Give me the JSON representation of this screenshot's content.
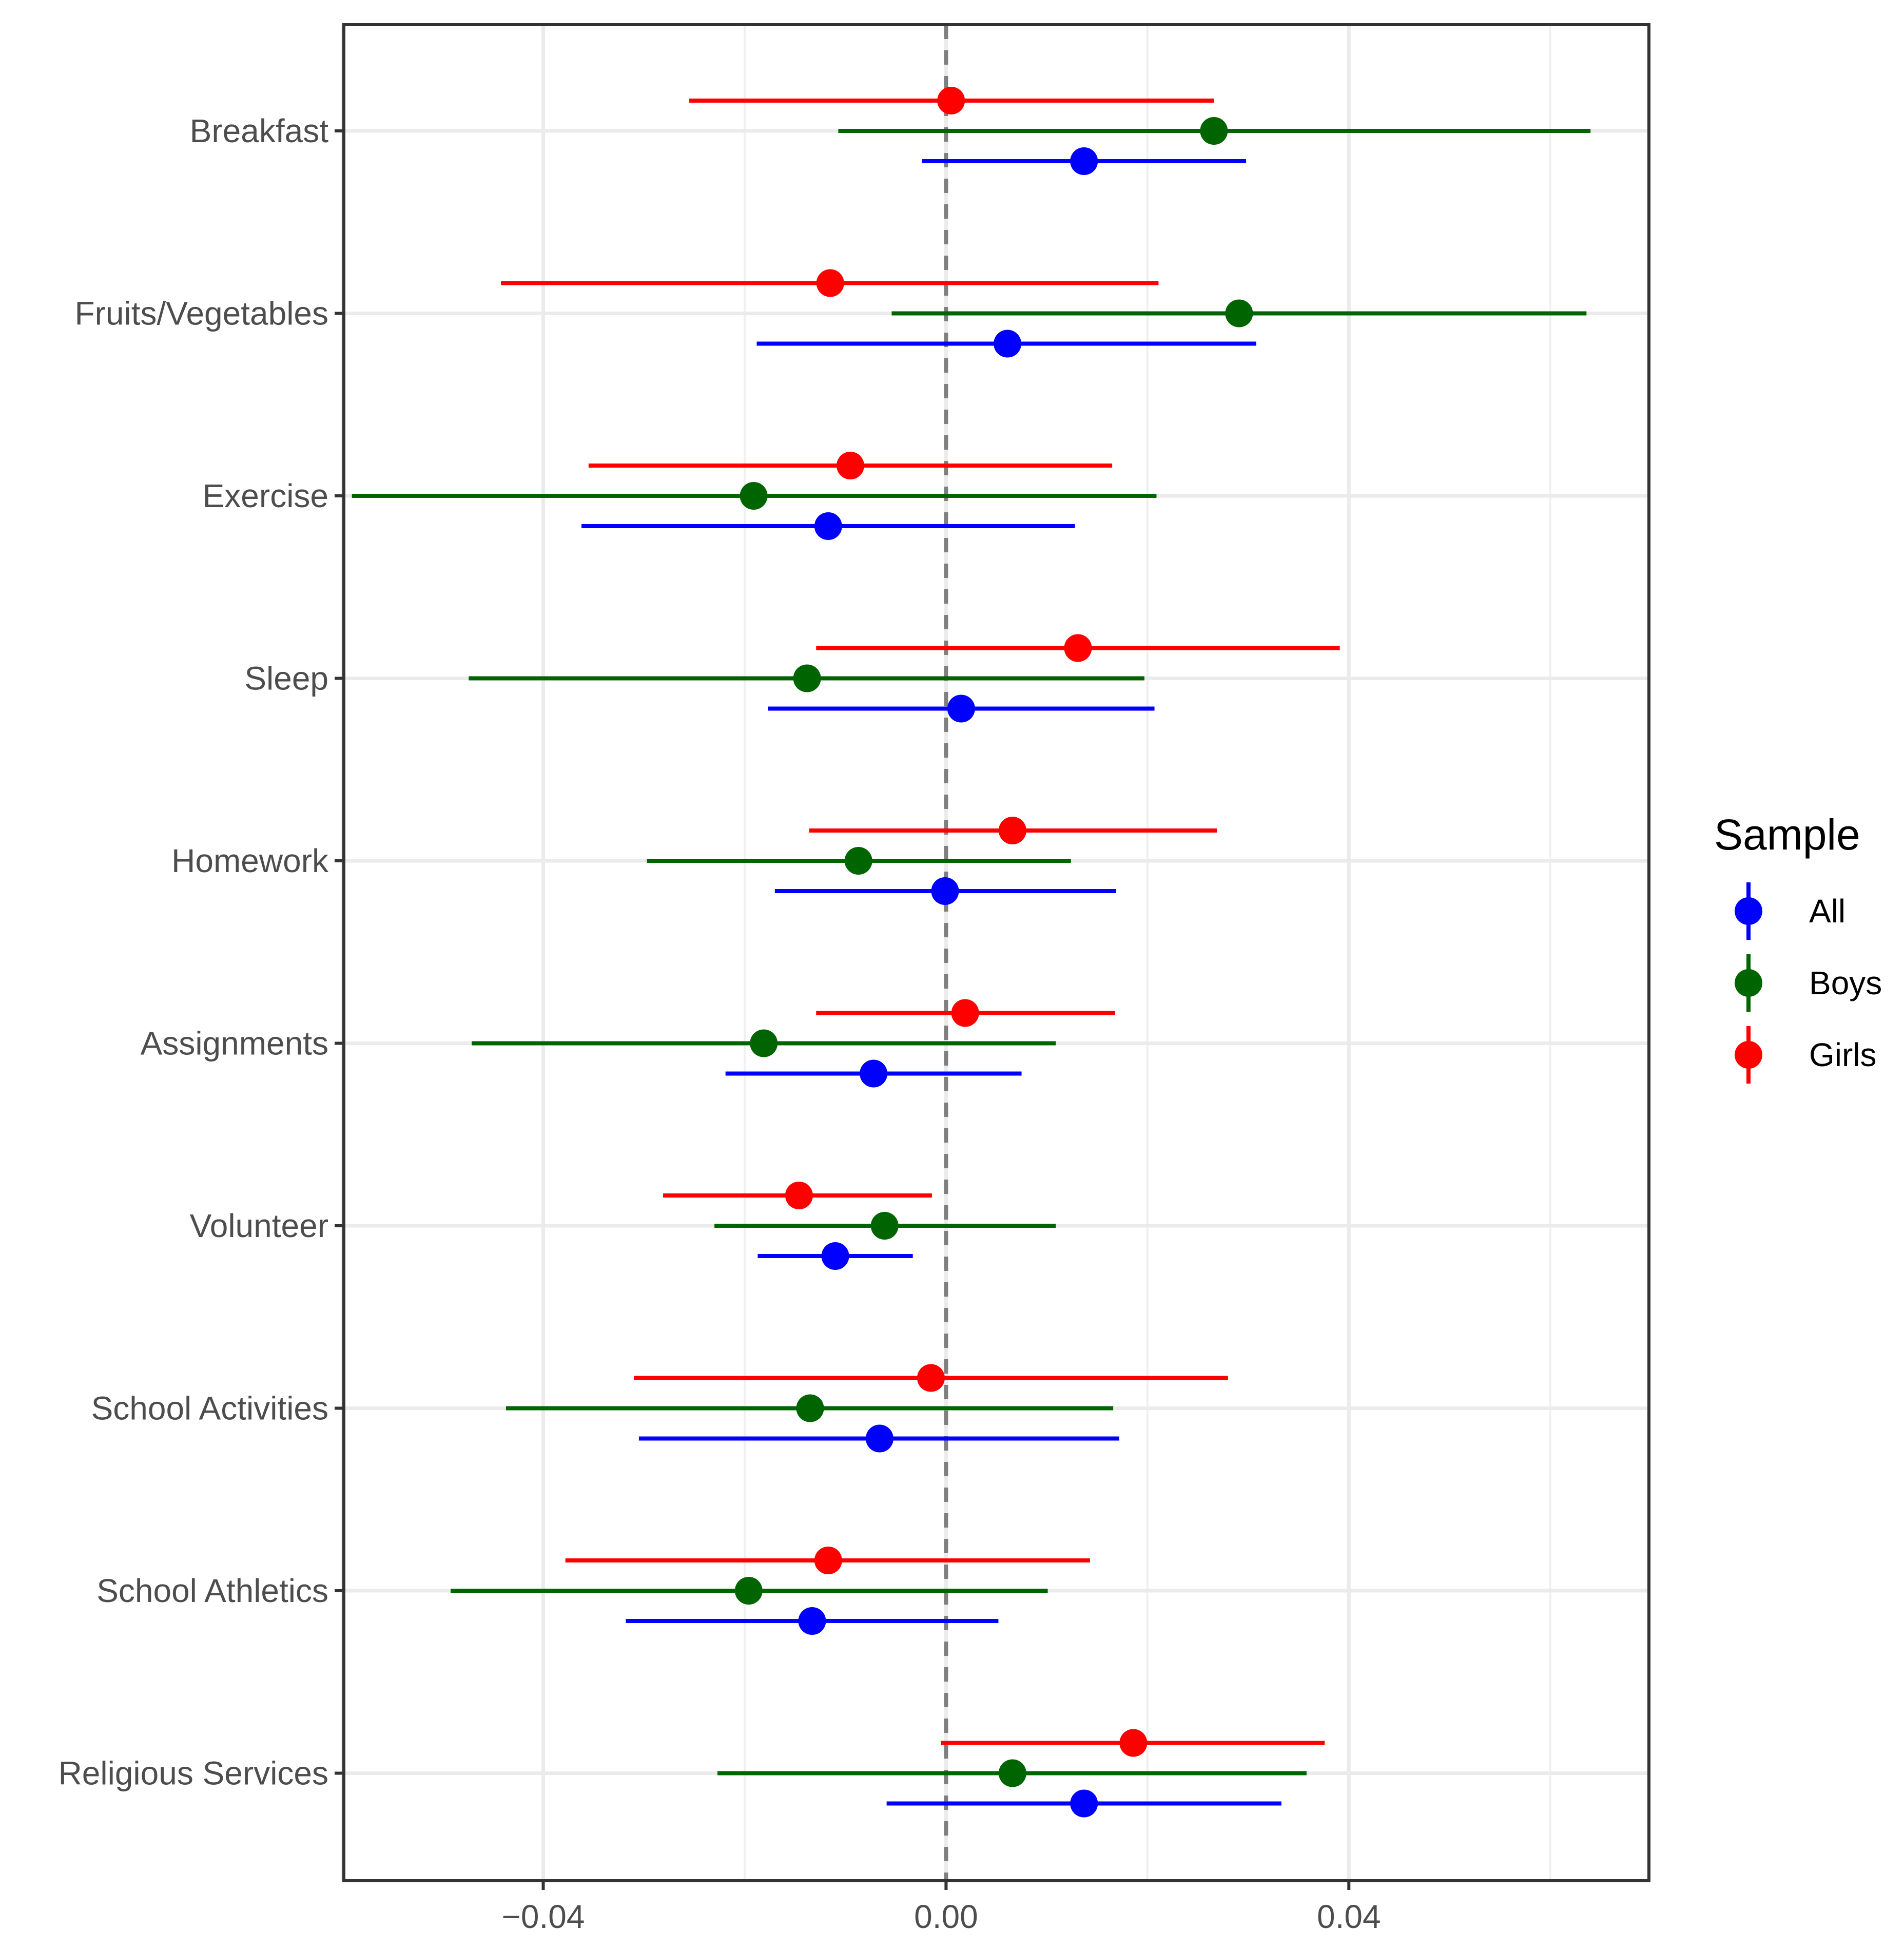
{
  "chart_data": {
    "type": "dot-and-whisker",
    "title": "",
    "xlabel": "",
    "ylabel": "",
    "xlim": [
      -0.0598,
      0.0698
    ],
    "x_ticks": [
      -0.04,
      0.0,
      0.04
    ],
    "x_tick_labels": [
      "−0.04",
      "0.00",
      "0.04"
    ],
    "x_minor_gridlines": [
      -0.06,
      -0.02,
      0.02,
      0.06
    ],
    "reference_line": 0.0,
    "grid": true,
    "legend": {
      "title": "Sample",
      "placement": "right",
      "entries": [
        {
          "label": "All",
          "color": "#0000ff"
        },
        {
          "label": "Boys",
          "color": "#006400"
        },
        {
          "label": "Girls",
          "color": "#ff0000"
        }
      ]
    },
    "categories": [
      "Breakfast",
      "Fruits/Vegetables",
      "Exercise",
      "Sleep",
      "Homework",
      "Assignments",
      "Volunteer",
      "School Activities",
      "School Athletics",
      "Religious Services"
    ],
    "series": [
      {
        "name": "Girls",
        "color": "#ff0000",
        "estimates": [
          0.0005,
          -0.0115,
          -0.0095,
          0.0131,
          0.0066,
          0.0019,
          -0.0146,
          -0.0015,
          -0.0117,
          0.0186
        ],
        "ci_low": [
          -0.0255,
          -0.0442,
          -0.0355,
          -0.0129,
          -0.0136,
          -0.0129,
          -0.0281,
          -0.031,
          -0.0378,
          -0.0005
        ],
        "ci_high": [
          0.0266,
          0.0211,
          0.0165,
          0.0391,
          0.0269,
          0.0168,
          -0.0014,
          0.028,
          0.0143,
          0.0376
        ]
      },
      {
        "name": "Boys",
        "color": "#006400",
        "estimates": [
          0.0266,
          0.0291,
          -0.0191,
          -0.0138,
          -0.0087,
          -0.0181,
          -0.0061,
          -0.0135,
          -0.0196,
          0.0066
        ],
        "ci_low": [
          -0.0107,
          -0.0054,
          -0.059,
          -0.0474,
          -0.0297,
          -0.0471,
          -0.023,
          -0.0437,
          -0.0492,
          -0.0227
        ],
        "ci_high": [
          0.064,
          0.0636,
          0.0209,
          0.0197,
          0.0124,
          0.0109,
          0.0109,
          0.0166,
          0.0101,
          0.0358
        ]
      },
      {
        "name": "All",
        "color": "#0000ff",
        "estimates": [
          0.0137,
          0.0061,
          -0.0117,
          0.0015,
          -0.0001,
          -0.0072,
          -0.011,
          -0.0066,
          -0.0133,
          0.0137
        ],
        "ci_low": [
          -0.0024,
          -0.0188,
          -0.0362,
          -0.0177,
          -0.017,
          -0.0219,
          -0.0187,
          -0.0305,
          -0.0318,
          -0.0059
        ],
        "ci_high": [
          0.0298,
          0.0308,
          0.0128,
          0.0207,
          0.0169,
          0.0075,
          -0.0033,
          0.0172,
          0.0052,
          0.0333
        ]
      }
    ]
  }
}
